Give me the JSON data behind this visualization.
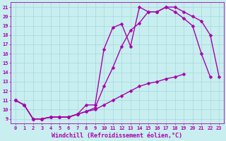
{
  "xlabel": "Windchill (Refroidissement éolien,°C)",
  "background_color": "#c8eef0",
  "grid_color": "#aadddd",
  "line_color": "#aa00aa",
  "xlim": [
    -0.5,
    23.5
  ],
  "ylim": [
    8.5,
    21.5
  ],
  "xticks": [
    0,
    1,
    2,
    3,
    4,
    5,
    6,
    7,
    8,
    9,
    10,
    11,
    12,
    13,
    14,
    15,
    16,
    17,
    18,
    19,
    20,
    21,
    22,
    23
  ],
  "yticks": [
    9,
    10,
    11,
    12,
    13,
    14,
    15,
    16,
    17,
    18,
    19,
    20,
    21
  ],
  "line1_x": [
    0,
    1,
    2,
    3,
    4,
    5,
    6,
    7,
    8,
    9,
    10,
    11,
    12,
    13,
    14,
    15,
    16,
    17,
    18,
    19,
    20,
    21,
    22,
    23
  ],
  "line1_y": [
    11.0,
    10.5,
    9.0,
    9.0,
    9.2,
    9.2,
    9.2,
    9.5,
    10.5,
    10.5,
    16.5,
    18.8,
    19.2,
    16.8,
    21.0,
    20.5,
    20.5,
    21.0,
    21.0,
    20.5,
    20.0,
    19.5,
    18.0,
    13.5
  ],
  "line2_x": [
    0,
    1,
    2,
    3,
    4,
    5,
    6,
    7,
    8,
    9,
    10,
    11,
    12,
    13,
    14,
    15,
    16,
    17,
    18,
    19,
    20,
    21,
    22,
    23
  ],
  "line2_y": [
    11.0,
    10.5,
    9.0,
    9.0,
    9.2,
    9.2,
    9.2,
    9.5,
    9.8,
    10.2,
    12.5,
    14.5,
    16.8,
    18.5,
    19.3,
    20.5,
    20.5,
    21.0,
    20.5,
    19.8,
    19.0,
    16.0,
    13.5,
    null
  ],
  "line3_x": [
    0,
    1,
    2,
    3,
    4,
    5,
    6,
    7,
    8,
    9,
    10,
    11,
    12,
    13,
    14,
    15,
    16,
    17,
    18,
    19,
    20,
    21,
    22,
    23
  ],
  "line3_y": [
    11.0,
    10.5,
    9.0,
    9.0,
    9.2,
    9.2,
    9.2,
    9.5,
    9.8,
    10.0,
    10.5,
    11.0,
    11.5,
    12.0,
    12.5,
    12.8,
    13.0,
    13.3,
    13.5,
    13.8,
    null,
    null,
    null,
    null
  ],
  "markersize": 2.5,
  "linewidth": 1.0,
  "tick_fontsize": 5.0,
  "label_fontsize": 6.0
}
